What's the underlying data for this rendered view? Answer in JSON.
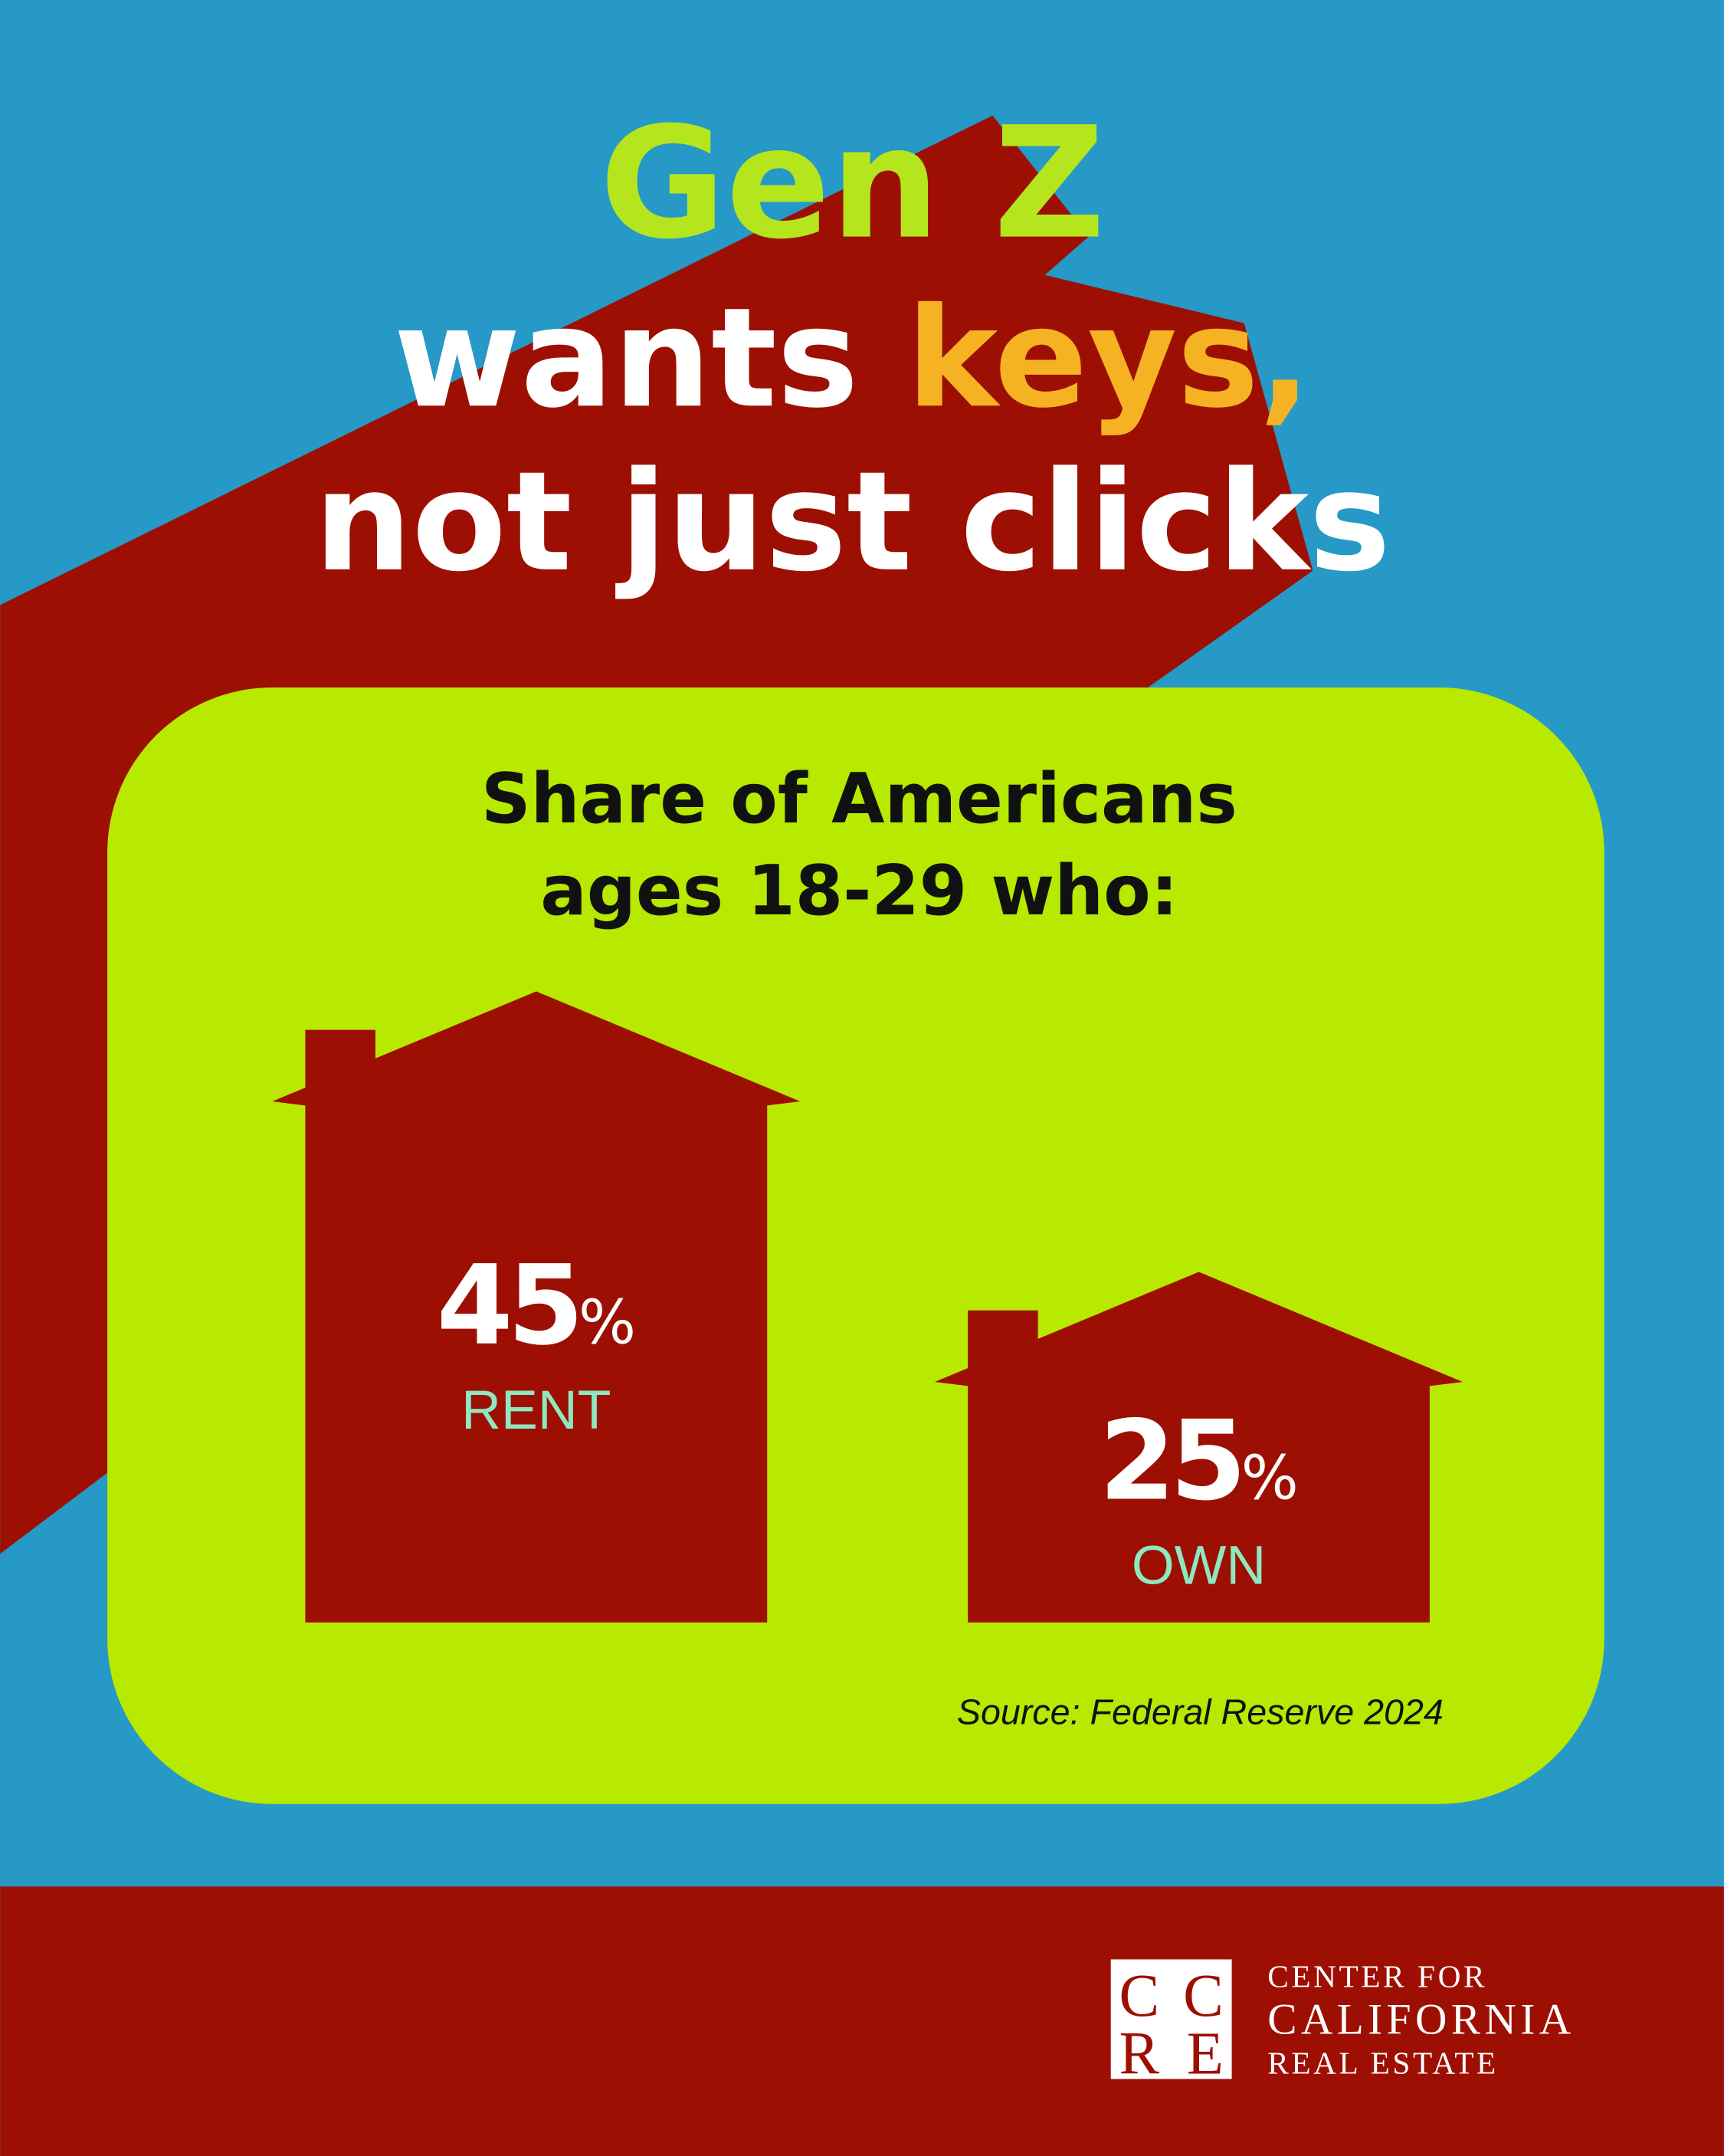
{
  "title": {
    "line1": "Gen Z",
    "line2_a": "wants ",
    "line2_b": "keys,",
    "line3": "not just clicks"
  },
  "subtitle": {
    "line1": "Share of Americans",
    "line2": "ages 18-29 who:"
  },
  "source": "Source: Federal Reserve 2024",
  "logo": {
    "monogram": "CCRE",
    "line1": "CENTER FOR",
    "line2": "CALIFORNIA",
    "line3": "REAL ESTATE"
  },
  "colors": {
    "background": "#2699c6",
    "accent_red": "#9d0f02",
    "panel_green": "#b8e900",
    "title_green": "#b5e61d",
    "keys_orange": "#f5b324",
    "label_mint": "#8de8c0"
  },
  "chart_data": {
    "type": "bar",
    "categories": [
      "RENT",
      "OWN"
    ],
    "values": [
      45,
      25
    ],
    "value_labels": [
      "45",
      "25"
    ],
    "unit": "%",
    "mark_shape": "house"
  }
}
